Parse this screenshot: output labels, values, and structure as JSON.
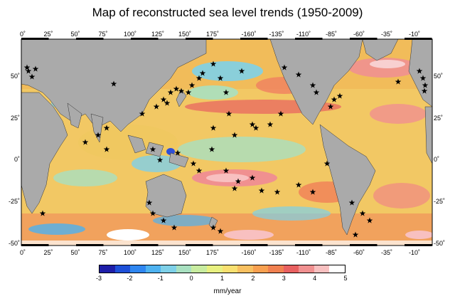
{
  "title": "Map of reconstructed sea level trends (1950-2009)",
  "lon_labels": [
    "0˚",
    "25˚",
    "50˚",
    "75˚",
    "100˚",
    "125˚",
    "150˚",
    "175˚",
    "-160˚",
    "-135˚",
    "-110˚",
    "-85˚",
    "-60˚",
    "-35˚",
    "-10˚"
  ],
  "lat_labels_left": [
    "50˚",
    "25˚",
    "0˚",
    "-25˚",
    "-50˚"
  ],
  "lat_labels_right": [
    "50˚",
    "25˚",
    "0˚",
    "-25˚",
    "-50˚"
  ],
  "colorbar": {
    "ticks": [
      "-3",
      "-2",
      "-1",
      "0",
      "1",
      "2",
      "3",
      "4",
      "5"
    ],
    "unit": "mm/year",
    "range": [
      -3,
      5
    ],
    "colors": [
      "#1e1ea8",
      "#1e50d8",
      "#2f86f0",
      "#4eb2f0",
      "#7ed0e8",
      "#a8e0c0",
      "#c8eca0",
      "#e8f080",
      "#f8e070",
      "#f8c060",
      "#f8a050",
      "#f08050",
      "#e86060",
      "#f09090",
      "#f8c0c0",
      "#ffffff"
    ]
  },
  "colors": {
    "land": "#aaaaaa",
    "ocean_base": "#f4d070",
    "coast": "#333333"
  }
}
